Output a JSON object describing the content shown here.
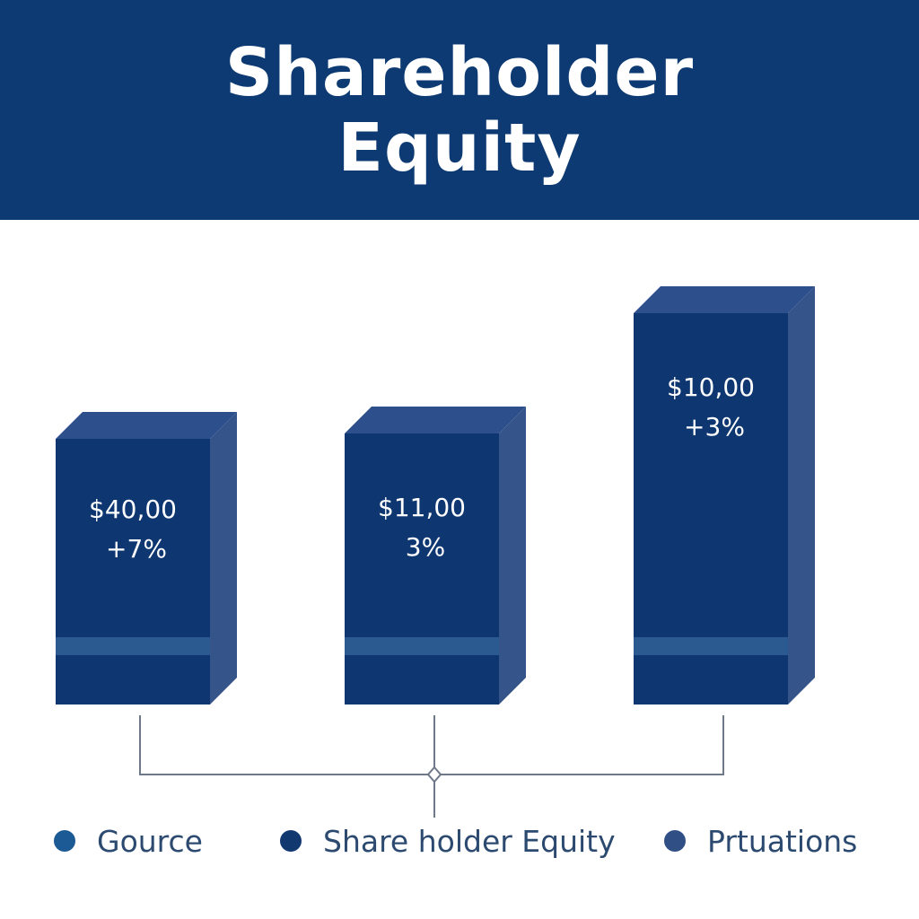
{
  "header": {
    "title": "Shareholder Equity"
  },
  "colors": {
    "header_bg": "#0d3a72",
    "bar_front": "#0e3670",
    "bar_side": "#34548a",
    "bar_top": "#2d4f8c",
    "bar_band": "#2b5a91",
    "connector": "#6e7888"
  },
  "chart_data": {
    "type": "bar",
    "categories": [
      "",
      "",
      ""
    ],
    "series": [
      {
        "values": [
          40.0,
          11.0,
          10.0
        ]
      }
    ],
    "data_labels": [
      {
        "value": "$40,00",
        "change": "+7%"
      },
      {
        "value": "$11,00",
        "change": "3%"
      },
      {
        "value": "$10,00",
        "change": "+3%"
      }
    ],
    "legend": {
      "position": "bottom",
      "items": [
        {
          "label": "Gource",
          "color": "#1b5a94"
        },
        {
          "label": "Share holder Equity",
          "color": "#11386f"
        },
        {
          "label": "Prtuations",
          "color": "#2f4f85"
        }
      ]
    },
    "title": "Shareholder Equity",
    "xlabel": "",
    "ylabel": "",
    "grid": false
  }
}
